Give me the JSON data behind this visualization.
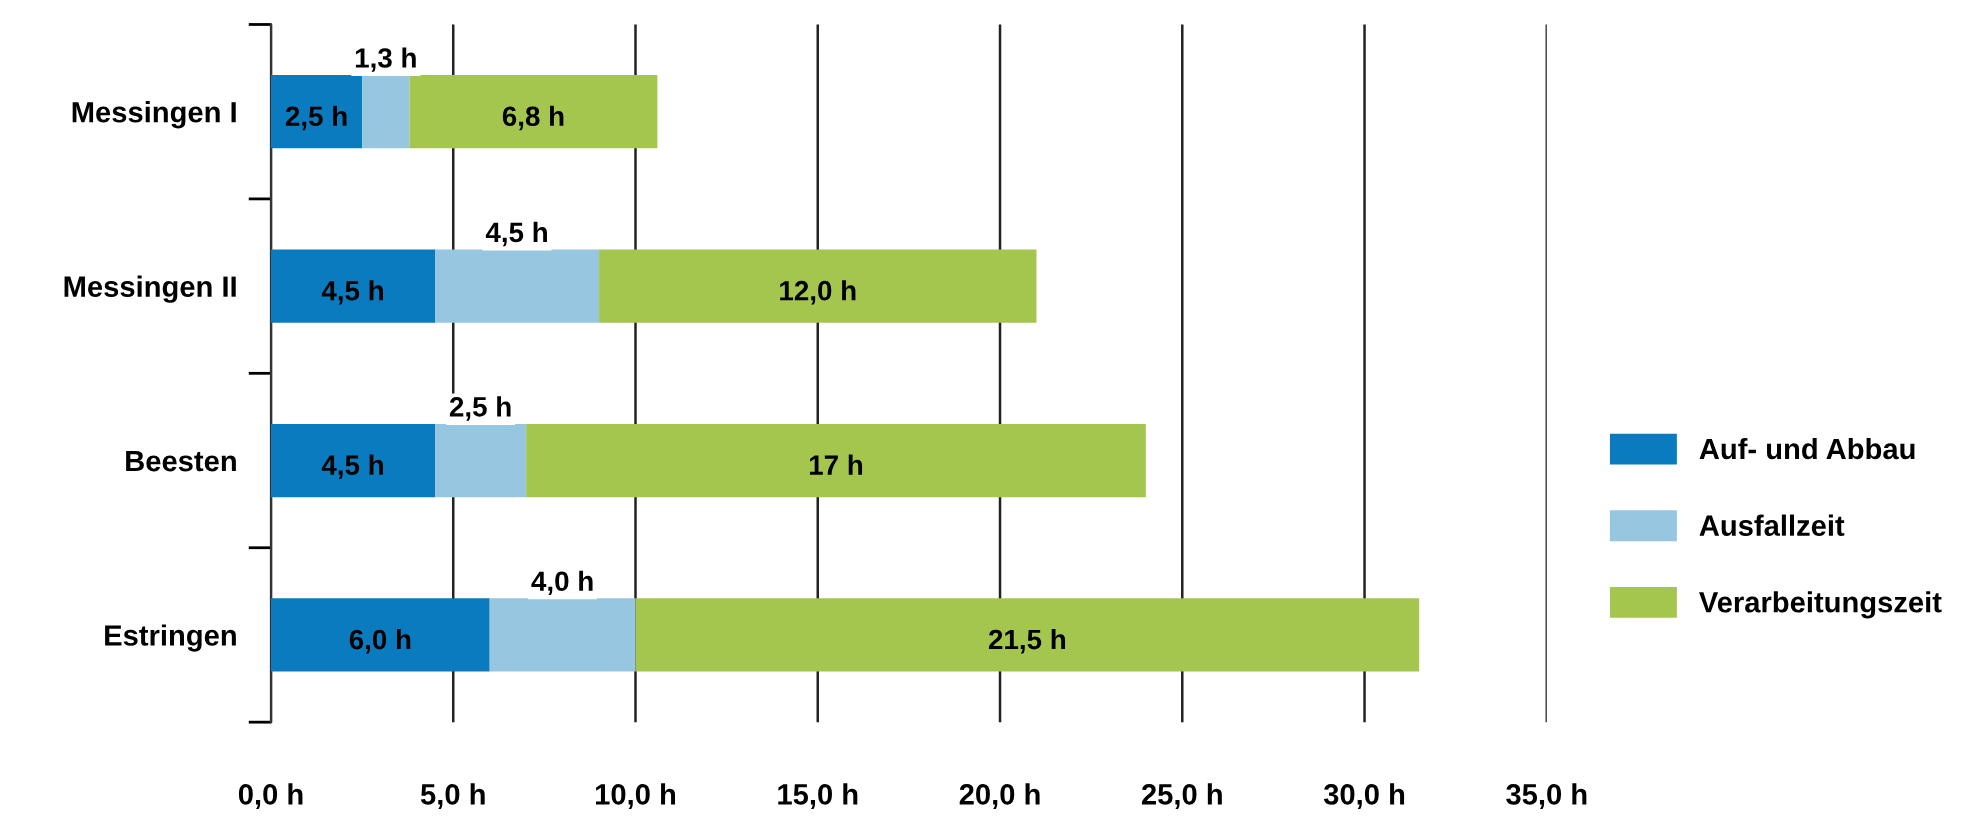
{
  "chart_data": {
    "type": "bar",
    "orientation": "horizontal",
    "stacked": true,
    "categories": [
      "Messingen I",
      "Messingen II",
      "Beesten",
      "Estringen"
    ],
    "series": [
      {
        "name": "Auf- und Abbau",
        "color": "#0a7bbf",
        "values": [
          2.5,
          4.5,
          4.5,
          6.0
        ],
        "value_labels": [
          "2,5 h",
          "4,5 h",
          "4,5 h",
          "6,0 h"
        ]
      },
      {
        "name": "Ausfallzeit",
        "color": "#96c6e0",
        "values": [
          1.3,
          4.5,
          2.5,
          4.0
        ],
        "value_labels": [
          "1,3 h",
          "4,5 h",
          "2,5 h",
          "4,0 h"
        ]
      },
      {
        "name": "Verarbeitungszeit",
        "color": "#a4c64f",
        "values": [
          6.8,
          12.0,
          17,
          21.5
        ],
        "value_labels": [
          "6,8 h",
          "12,0 h",
          "17 h",
          "21,5 h"
        ]
      }
    ],
    "xlim": [
      0,
      35
    ],
    "xticks": [
      {
        "value": 0,
        "label": "0,0 h"
      },
      {
        "value": 5,
        "label": "5,0 h"
      },
      {
        "value": 10,
        "label": "10,0 h"
      },
      {
        "value": 15,
        "label": "15,0 h"
      },
      {
        "value": 20,
        "label": "20,0 h"
      },
      {
        "value": 25,
        "label": "25,0 h"
      },
      {
        "value": 30,
        "label": "30,0 h"
      },
      {
        "value": 35,
        "label": "35,0 h"
      }
    ],
    "grid": "x",
    "legend": "right"
  }
}
